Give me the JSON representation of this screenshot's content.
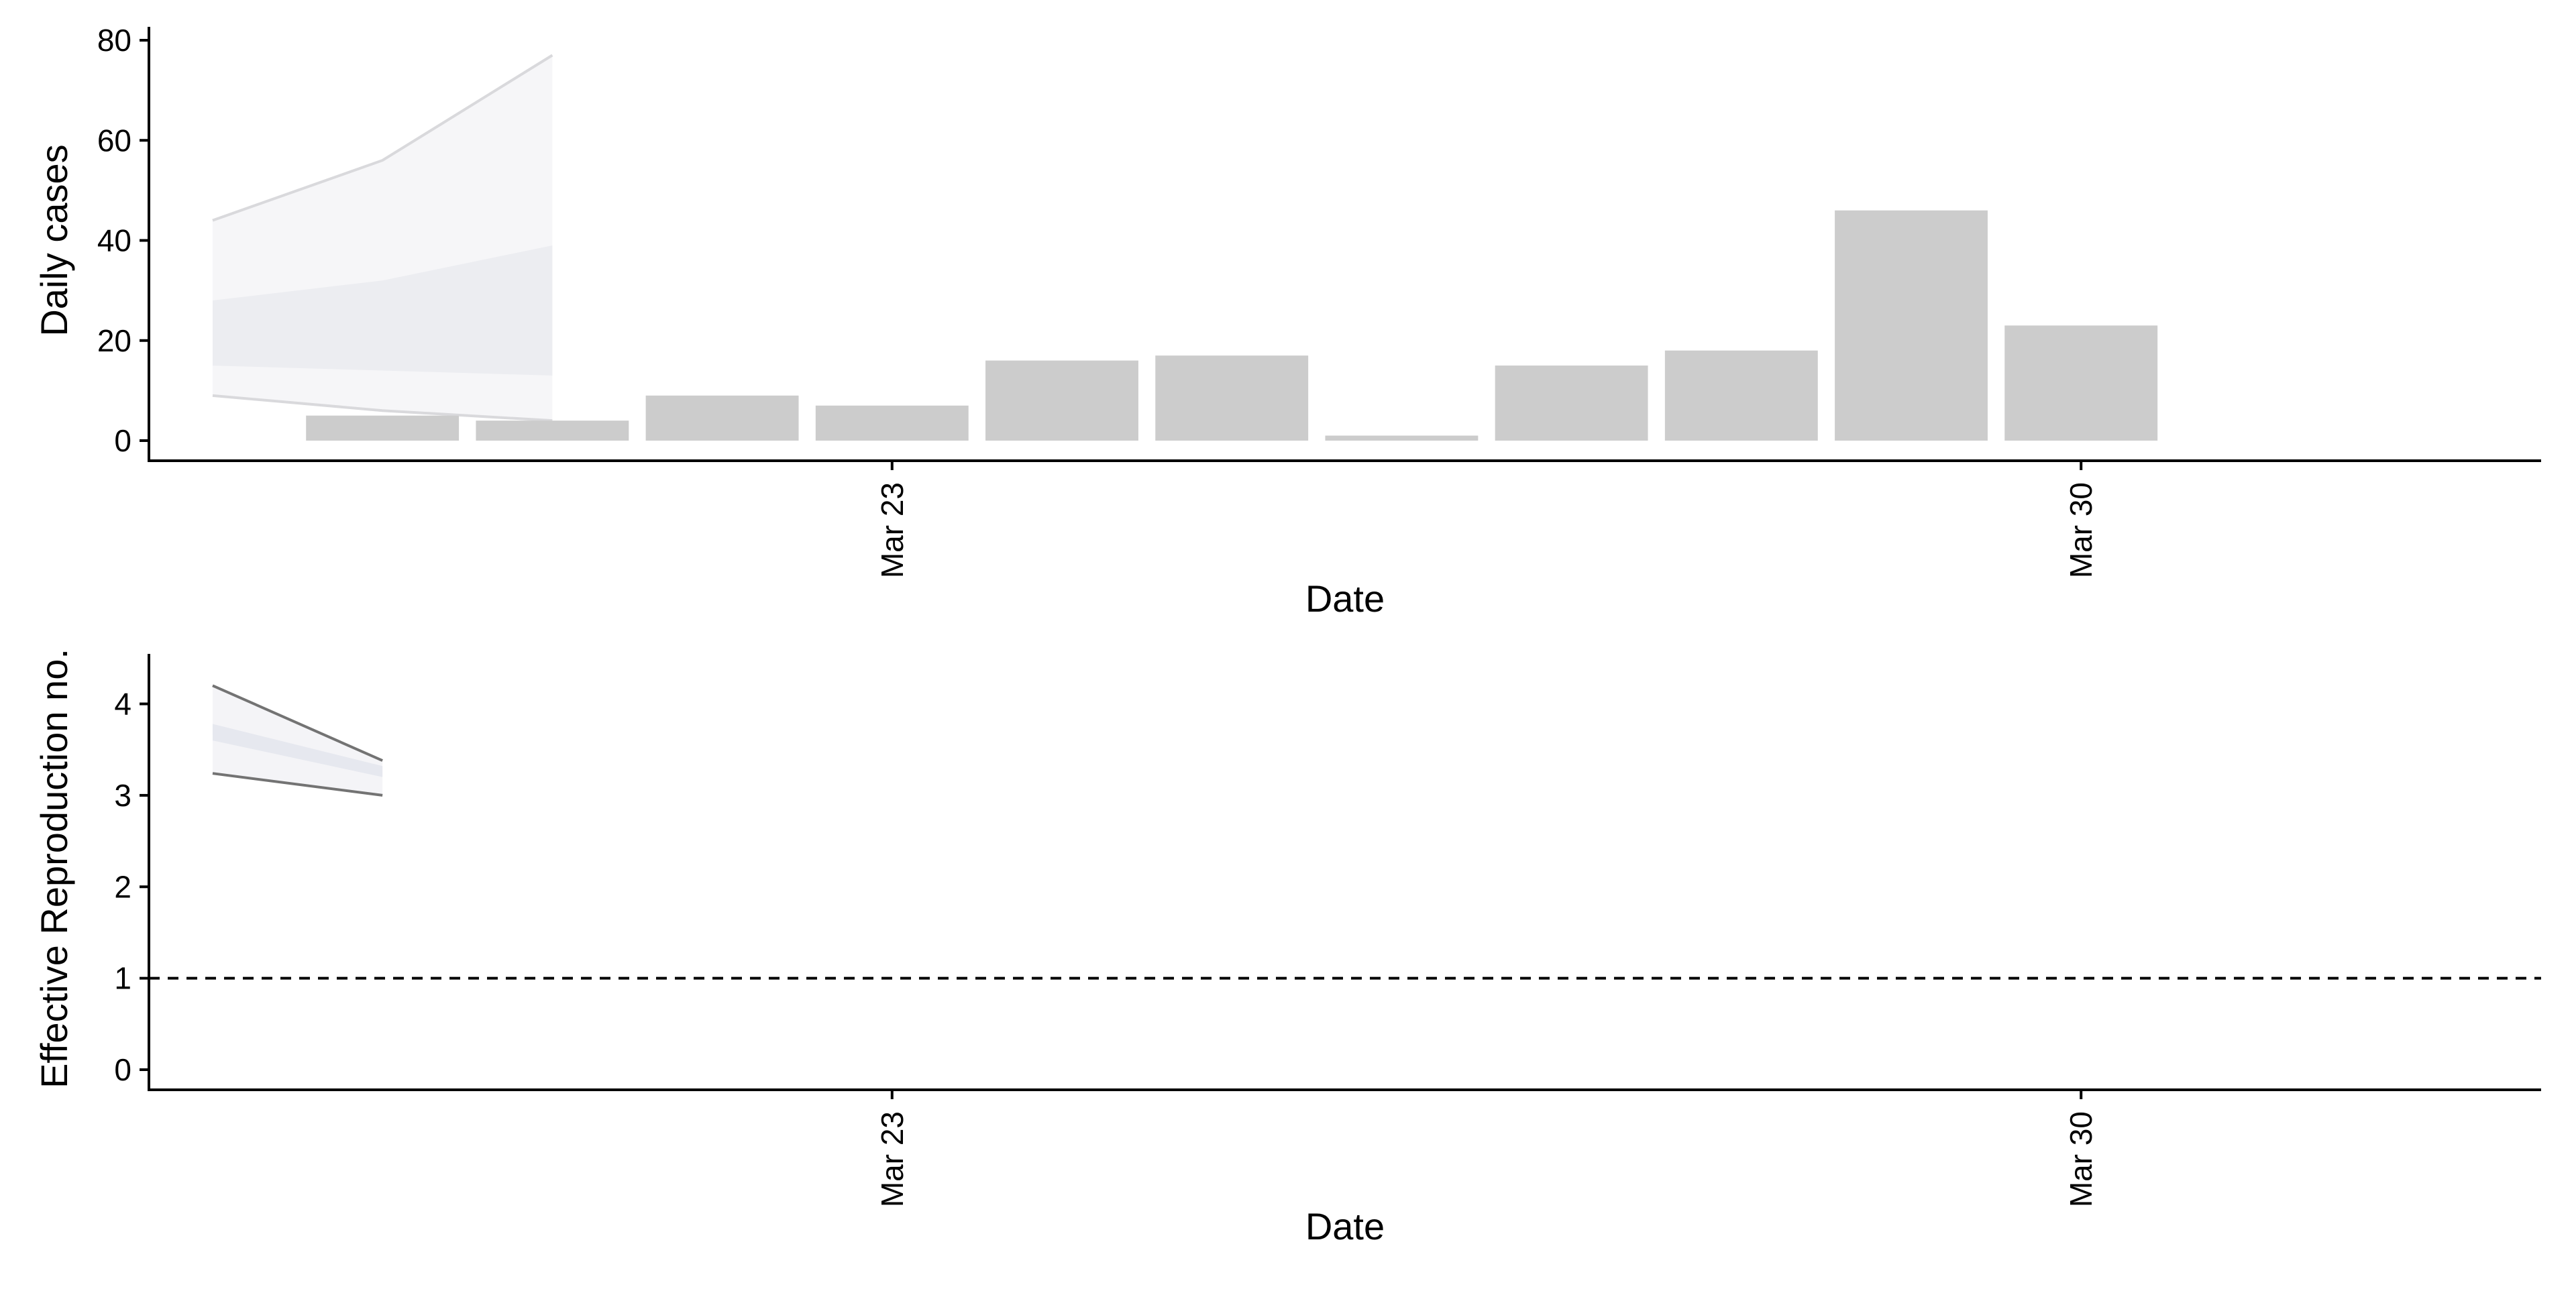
{
  "chart_data": [
    {
      "type": "bar",
      "ylabel": "Daily cases",
      "xlabel": "Date",
      "ylim": [
        0,
        80
      ],
      "yticks": [
        0,
        20,
        40,
        60,
        80
      ],
      "xticks": [
        {
          "date": "2020-03-23",
          "label": "Mar 23"
        },
        {
          "date": "2020-03-30",
          "label": "Mar 30"
        }
      ],
      "xlim": [
        "2020-03-18T15:00",
        "2020-04-01T17:00"
      ],
      "grid": false,
      "bars": {
        "name": "",
        "x": [
          "2020-03-20",
          "2020-03-21",
          "2020-03-22",
          "2020-03-23",
          "2020-03-24",
          "2020-03-25",
          "2020-03-26",
          "2020-03-27",
          "2020-03-28",
          "2020-03-29",
          "2020-03-30",
          "2020-03-31"
        ],
        "values": [
          5,
          4,
          9,
          7,
          16,
          17,
          1,
          15,
          18,
          46,
          23,
          0
        ]
      },
      "estimate_bands": {
        "x": [
          "2020-03-19",
          "2020-03-20",
          "2020-03-21"
        ],
        "outer_upper": [
          44,
          56,
          77
        ],
        "outer_lower": [
          9,
          6,
          4
        ],
        "inner_upper": [
          28,
          32,
          39
        ],
        "inner_lower": [
          15,
          14,
          13
        ]
      },
      "colors": {
        "bars": "#cccccc",
        "band_outer": "#f6f6f8",
        "band_inner": "#ecedf1",
        "band_outline": "#d9d9dc",
        "axis": "#000000"
      }
    },
    {
      "type": "line",
      "ylabel": "Effective Reproduction no.",
      "xlabel": "Date",
      "ylim": [
        0,
        4.4
      ],
      "yticks": [
        0,
        1,
        2,
        3,
        4
      ],
      "xticks": [
        {
          "date": "2020-03-23",
          "label": "Mar 23"
        },
        {
          "date": "2020-03-30",
          "label": "Mar 30"
        }
      ],
      "xlim": [
        "2020-03-18T15:00",
        "2020-04-01T17:00"
      ],
      "grid": false,
      "reference_line": {
        "y": 1,
        "style": "dashed"
      },
      "series": [
        {
          "name": "",
          "role": "outer_upper",
          "x": [
            "2020-03-19",
            "2020-03-20"
          ],
          "values": [
            4.2,
            3.38
          ]
        },
        {
          "name": "",
          "role": "outer_lower",
          "x": [
            "2020-03-19",
            "2020-03-20"
          ],
          "values": [
            3.24,
            3.0
          ]
        },
        {
          "name": "",
          "role": "inner_upper",
          "x": [
            "2020-03-19",
            "2020-03-20"
          ],
          "values": [
            3.78,
            3.32
          ]
        },
        {
          "name": "",
          "role": "inner_lower",
          "x": [
            "2020-03-19",
            "2020-03-20"
          ],
          "values": [
            3.6,
            3.2
          ]
        }
      ],
      "colors": {
        "outer_band": "#f4f4f7",
        "inner_band": "#e6e8ef",
        "outline": "#737373",
        "reference": "#000000",
        "axis": "#000000"
      }
    }
  ]
}
